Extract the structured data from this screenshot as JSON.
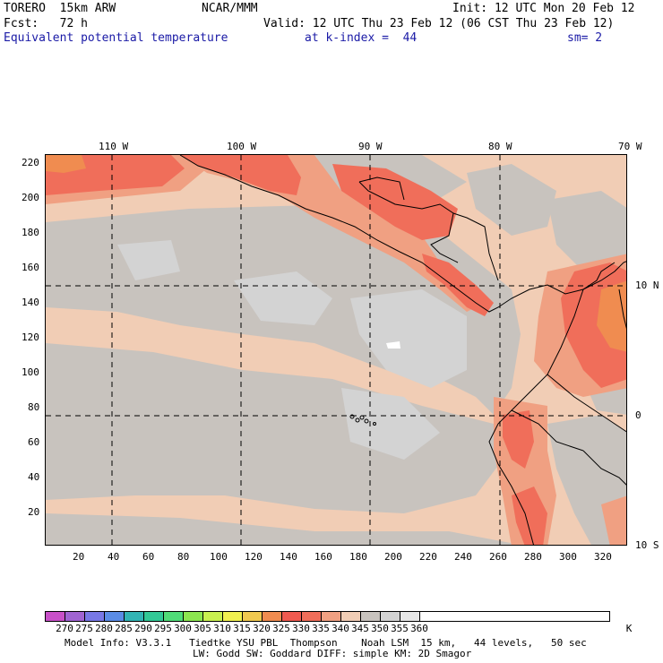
{
  "header": {
    "model": "TORERO  15km ARW",
    "org": "NCAR/MMM",
    "init": "Init: 12 UTC Mon 20 Feb 12",
    "fcst": "Fcst:   72 h",
    "valid": "Valid: 12 UTC Thu 23 Feb 12 (06 CST Thu 23 Feb 12)",
    "field": "Equivalent potential temperature",
    "level": "at k-index =  44",
    "smooth": "sm= 2"
  },
  "axes": {
    "top_lon": [
      "110 W",
      "100 W",
      "90 W",
      "80 W",
      "70 W"
    ],
    "right_lat": [
      "10 N",
      "0",
      "10 S"
    ],
    "left_y": [
      "220",
      "200",
      "180",
      "160",
      "140",
      "120",
      "100",
      "80",
      "60",
      "40",
      "20"
    ],
    "bottom_x": [
      "20",
      "40",
      "60",
      "80",
      "100",
      "120",
      "140",
      "160",
      "180",
      "200",
      "220",
      "240",
      "260",
      "280",
      "300",
      "320"
    ]
  },
  "colorbar": {
    "labels": [
      "270",
      "275",
      "280",
      "285",
      "290",
      "295",
      "300",
      "305",
      "310",
      "315",
      "320",
      "325",
      "330",
      "335",
      "340",
      "345",
      "350",
      "355",
      "360"
    ],
    "unit": "K",
    "colors": [
      "#c850c8",
      "#a064d2",
      "#7878e6",
      "#5a8ce6",
      "#32b4b4",
      "#32c896",
      "#50dc78",
      "#8ce650",
      "#c8f050",
      "#f0f050",
      "#f0c850",
      "#f08c50",
      "#f05a50",
      "#f06e5a",
      "#f0a082",
      "#f1cdb5",
      "#c8c3be",
      "#d3d3d3",
      "#e6e6e6",
      "#ffffff"
    ]
  },
  "footer": {
    "line1": "Model Info: V3.3.1   Tiedtke YSU PBL  Thompson    Noah LSM  15 km,   44 levels,   50 sec",
    "line2": "LW: Godd SW: Goddard DIFF: simple KM: 2D Smagor"
  }
}
